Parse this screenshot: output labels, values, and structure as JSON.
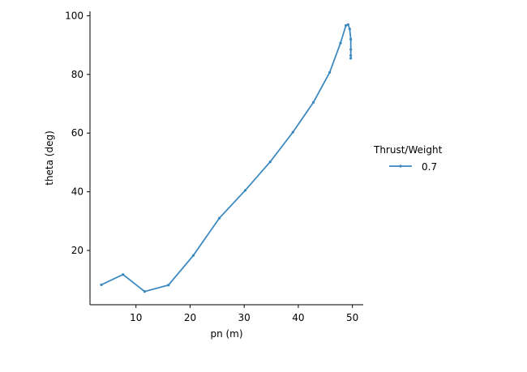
{
  "chart_data": {
    "type": "line",
    "xlabel": "pn (m)",
    "ylabel": "theta (deg)",
    "xlim": [
      1.5,
      52
    ],
    "ylim": [
      1.5,
      101.5
    ],
    "xticks": [
      10,
      20,
      30,
      40,
      50
    ],
    "yticks": [
      20,
      40,
      60,
      80,
      100
    ],
    "grid": false,
    "legend": {
      "title": "Thrust/Weight",
      "placement": "right"
    },
    "series": [
      {
        "name": "0.7",
        "color": "#3a88c0",
        "marker": "point",
        "x": [
          3.6,
          7.6,
          11.6,
          16.0,
          20.6,
          25.4,
          30.2,
          34.8,
          39.0,
          42.8,
          45.8,
          47.8,
          48.8,
          49.2,
          49.5,
          49.7,
          49.7,
          49.7,
          49.7
        ],
        "y": [
          8.3,
          11.8,
          6.0,
          8.2,
          18.3,
          31.0,
          40.5,
          50.2,
          60.3,
          70.5,
          80.7,
          90.7,
          96.7,
          97.0,
          95.5,
          92.0,
          88.5,
          86.5,
          85.5
        ]
      }
    ]
  }
}
